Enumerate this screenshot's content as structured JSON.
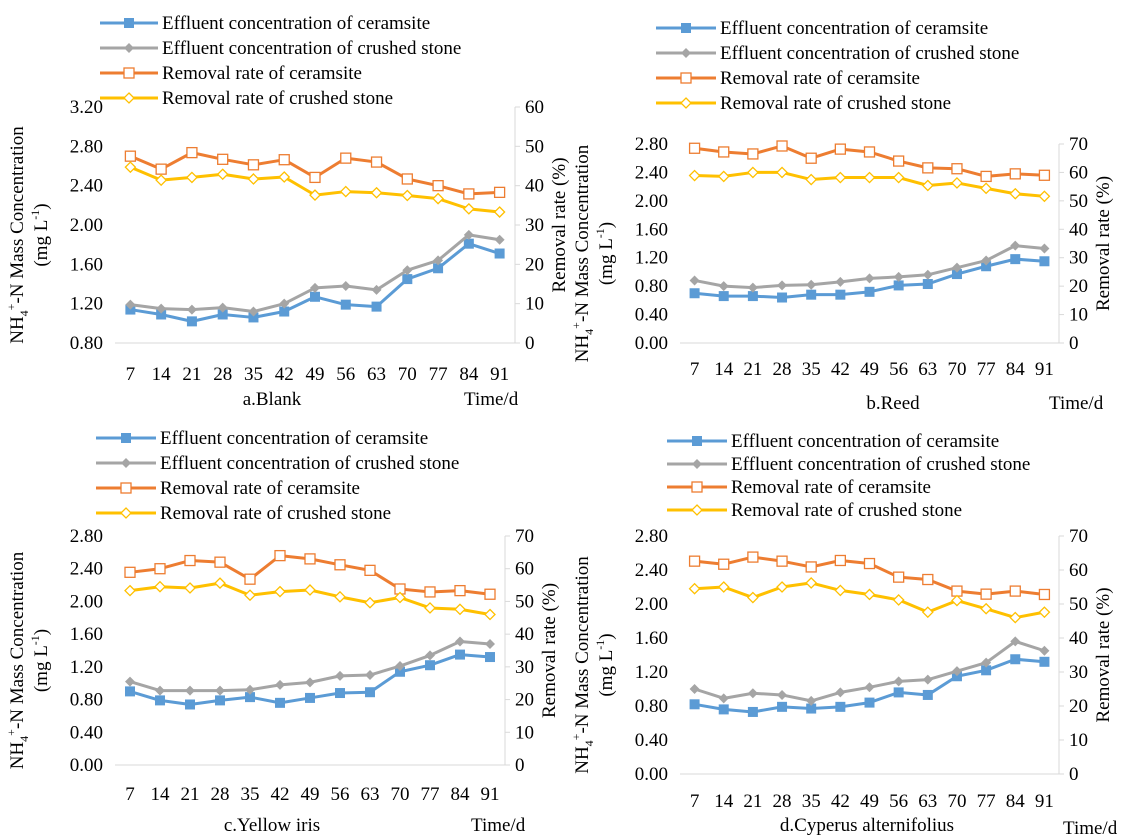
{
  "legend_labels": {
    "conc_ceramsite": "Effluent concentration of ceramsite",
    "conc_stone": "Effluent concentration of crushed stone",
    "rate_ceramsite": "Removal rate of ceramsite",
    "rate_stone": "Removal rate of crushed stone"
  },
  "colors": {
    "conc_ceramsite": "#5b9bd5",
    "conc_stone": "#a5a5a5",
    "rate_ceramsite": "#ed7d31",
    "rate_stone": "#ffc000",
    "axis": "#d9d9d9"
  },
  "chart_data": [
    {
      "type": "line",
      "subtitle": "a.Blank",
      "xlabel": "Time/d",
      "ylabel_left": "NH4+-N Mass Concentration (mg L-1)",
      "ylabel_right": "Removal rate (%)",
      "x": [
        "7",
        "14",
        "21",
        "28",
        "35",
        "42",
        "49",
        "56",
        "63",
        "70",
        "77",
        "84",
        "91"
      ],
      "ylim_left": [
        0.8,
        3.2
      ],
      "yticks_left": [
        "0.80",
        "1.20",
        "1.60",
        "2.00",
        "2.40",
        "2.80",
        "3.20"
      ],
      "ylim_right": [
        0,
        60
      ],
      "yticks_right": [
        "0",
        "10",
        "20",
        "30",
        "40",
        "50",
        "60"
      ],
      "series": [
        {
          "name": "Effluent concentration of ceramsite",
          "axis": "left",
          "values": [
            1.14,
            1.09,
            1.02,
            1.09,
            1.06,
            1.12,
            1.27,
            1.19,
            1.17,
            1.45,
            1.56,
            1.81,
            1.71
          ]
        },
        {
          "name": "Effluent concentration of crushed stone",
          "axis": "left",
          "values": [
            1.19,
            1.15,
            1.14,
            1.16,
            1.12,
            1.2,
            1.36,
            1.38,
            1.34,
            1.54,
            1.64,
            1.9,
            1.85
          ]
        },
        {
          "name": "Removal rate of ceramsite",
          "axis": "right",
          "values": [
            47.5,
            44.2,
            48.4,
            46.7,
            45.3,
            46.6,
            42.1,
            47.0,
            46.0,
            41.7,
            40.0,
            37.9,
            38.3
          ]
        },
        {
          "name": "Removal rate of crushed stone",
          "axis": "right",
          "values": [
            44.7,
            41.4,
            42.1,
            42.9,
            41.7,
            42.2,
            37.6,
            38.5,
            38.2,
            37.5,
            36.7,
            34.1,
            33.3
          ]
        }
      ]
    },
    {
      "type": "line",
      "subtitle": "b.Reed",
      "xlabel": "Time/d",
      "ylabel_left": "NH4+-N Mass Concentration (mg L-1)",
      "ylabel_right": "Removal rate (%)",
      "x": [
        "7",
        "14",
        "21",
        "28",
        "35",
        "42",
        "49",
        "56",
        "63",
        "70",
        "77",
        "84",
        "91"
      ],
      "ylim_left": [
        0.0,
        2.8
      ],
      "yticks_left": [
        "0.00",
        "0.40",
        "0.80",
        "1.20",
        "1.60",
        "2.00",
        "2.40",
        "2.80"
      ],
      "ylim_right": [
        0,
        70
      ],
      "yticks_right": [
        "0",
        "10",
        "20",
        "30",
        "40",
        "50",
        "60",
        "70"
      ],
      "series": [
        {
          "name": "Effluent concentration of ceramsite",
          "axis": "left",
          "values": [
            0.7,
            0.66,
            0.66,
            0.64,
            0.68,
            0.68,
            0.72,
            0.81,
            0.83,
            0.97,
            1.08,
            1.18,
            1.15
          ]
        },
        {
          "name": "Effluent concentration of crushed stone",
          "axis": "left",
          "values": [
            0.88,
            0.8,
            0.78,
            0.81,
            0.82,
            0.86,
            0.91,
            0.93,
            0.96,
            1.06,
            1.16,
            1.37,
            1.33
          ]
        },
        {
          "name": "Removal rate of ceramsite",
          "axis": "right",
          "values": [
            68.5,
            67.2,
            66.5,
            69.3,
            65.0,
            68.2,
            67.2,
            64.0,
            61.6,
            61.3,
            58.6,
            59.5,
            59.0
          ]
        },
        {
          "name": "Removal rate of crushed stone",
          "axis": "right",
          "values": [
            58.9,
            58.6,
            60.0,
            60.0,
            57.5,
            58.2,
            58.2,
            58.2,
            55.4,
            56.3,
            54.4,
            52.5,
            51.6
          ]
        }
      ]
    },
    {
      "type": "line",
      "subtitle": "c.Yellow iris",
      "xlabel": "Time/d",
      "ylabel_left": "NH4+-N Mass Concentration (mg L-1)",
      "ylabel_right": "Removal rate (%)",
      "x": [
        "7",
        "14",
        "21",
        "28",
        "35",
        "42",
        "49",
        "56",
        "63",
        "70",
        "77",
        "84",
        "91"
      ],
      "ylim_left": [
        0.0,
        2.8
      ],
      "yticks_left": [
        "0.00",
        "0.40",
        "0.80",
        "1.20",
        "1.60",
        "2.00",
        "2.40",
        "2.80"
      ],
      "ylim_right": [
        0,
        70
      ],
      "yticks_right": [
        "0",
        "10",
        "20",
        "30",
        "40",
        "50",
        "60",
        "70"
      ],
      "series": [
        {
          "name": "Effluent concentration of ceramsite",
          "axis": "left",
          "values": [
            0.9,
            0.79,
            0.74,
            0.79,
            0.83,
            0.76,
            0.82,
            0.88,
            0.89,
            1.14,
            1.22,
            1.35,
            1.32
          ]
        },
        {
          "name": "Effluent concentration of crushed stone",
          "axis": "left",
          "values": [
            1.02,
            0.91,
            0.91,
            0.91,
            0.92,
            0.98,
            1.01,
            1.09,
            1.1,
            1.21,
            1.34,
            1.51,
            1.48
          ]
        },
        {
          "name": "Removal rate of ceramsite",
          "axis": "right",
          "values": [
            58.9,
            60.0,
            62.5,
            62.0,
            56.8,
            64.0,
            63.0,
            61.2,
            59.5,
            53.8,
            52.9,
            53.3,
            52.2
          ]
        },
        {
          "name": "Removal rate of crushed stone",
          "axis": "right",
          "values": [
            53.3,
            54.5,
            54.1,
            55.6,
            51.9,
            53.0,
            53.5,
            51.4,
            49.6,
            51.2,
            48.0,
            47.6,
            46.0
          ]
        }
      ]
    },
    {
      "type": "line",
      "subtitle": "d.Cyperus alternifolius",
      "xlabel": "Time/d",
      "ylabel_left": "NH4+-N Mass Concentration (mg L-1)",
      "ylabel_right": "Removal rate (%)",
      "x": [
        "7",
        "14",
        "21",
        "28",
        "35",
        "42",
        "49",
        "56",
        "63",
        "70",
        "77",
        "84",
        "91"
      ],
      "ylim_left": [
        0.0,
        2.8
      ],
      "yticks_left": [
        "0.00",
        "0.40",
        "0.80",
        "1.20",
        "1.60",
        "2.00",
        "2.40",
        "2.80"
      ],
      "ylim_right": [
        0,
        70
      ],
      "yticks_right": [
        "0",
        "10",
        "20",
        "30",
        "40",
        "50",
        "60",
        "70"
      ],
      "series": [
        {
          "name": "Effluent concentration of ceramsite",
          "axis": "left",
          "values": [
            0.82,
            0.76,
            0.73,
            0.79,
            0.77,
            0.79,
            0.84,
            0.96,
            0.93,
            1.15,
            1.22,
            1.35,
            1.32
          ]
        },
        {
          "name": "Effluent concentration of crushed stone",
          "axis": "left",
          "values": [
            1.0,
            0.89,
            0.95,
            0.93,
            0.86,
            0.96,
            1.02,
            1.09,
            1.11,
            1.21,
            1.31,
            1.56,
            1.45
          ]
        },
        {
          "name": "Removal rate of ceramsite",
          "axis": "right",
          "values": [
            62.6,
            61.7,
            63.8,
            62.6,
            60.9,
            62.8,
            61.9,
            57.9,
            57.2,
            53.8,
            52.9,
            53.8,
            52.8
          ]
        },
        {
          "name": "Removal rate of crushed stone",
          "axis": "right",
          "values": [
            54.5,
            55.0,
            51.9,
            55.0,
            56.2,
            54.0,
            52.8,
            51.2,
            47.6,
            51.0,
            48.6,
            46.0,
            47.6
          ]
        }
      ]
    }
  ]
}
